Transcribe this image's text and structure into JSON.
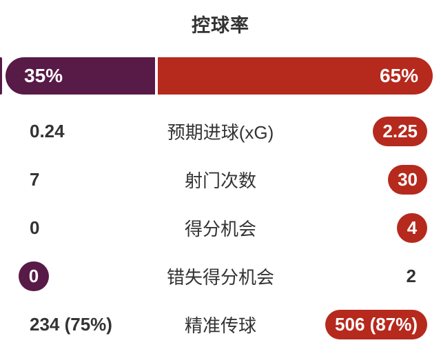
{
  "title": "控球率",
  "colors": {
    "home": "#581a47",
    "away": "#b6291d",
    "text": "#333333",
    "pill_text": "#ffffff",
    "background": "#ffffff"
  },
  "possession_bar": {
    "home_label": "35%",
    "away_label": "65%",
    "home_value": 35,
    "away_value": 65
  },
  "stats": [
    {
      "label": "预期进球(xG)",
      "home": "0.24",
      "away": "2.25"
    },
    {
      "label": "射门次数",
      "home": "7",
      "away": "30"
    },
    {
      "label": "得分机会",
      "home": "0",
      "away": "4"
    },
    {
      "label": "错失得分机会",
      "home": "0",
      "away": "2"
    },
    {
      "label": "精准传球",
      "home": "234 (75%)",
      "away": "506 (87%)"
    }
  ],
  "chart_data": {
    "type": "bar",
    "title": "控球率",
    "categories": [
      "控球率",
      "预期进球(xG)",
      "射门次数",
      "得分机会",
      "错失得分机会",
      "精准传球"
    ],
    "series": [
      {
        "name": "home",
        "color": "#581a47",
        "values": [
          35,
          0.24,
          7,
          0,
          0,
          234
        ],
        "labels": [
          "35%",
          "0.24",
          "7",
          "0",
          "0",
          "234 (75%)"
        ],
        "highlighted": [
          true,
          false,
          false,
          false,
          true,
          false
        ]
      },
      {
        "name": "away",
        "color": "#b6291d",
        "values": [
          65,
          2.25,
          30,
          4,
          2,
          506
        ],
        "labels": [
          "65%",
          "2.25",
          "30",
          "4",
          "2",
          "506 (87%)"
        ],
        "highlighted": [
          true,
          true,
          true,
          true,
          false,
          true
        ]
      }
    ],
    "notes": "possession bar split 35/65 with white gap; winning value of each stat row shown in a colored pill"
  }
}
